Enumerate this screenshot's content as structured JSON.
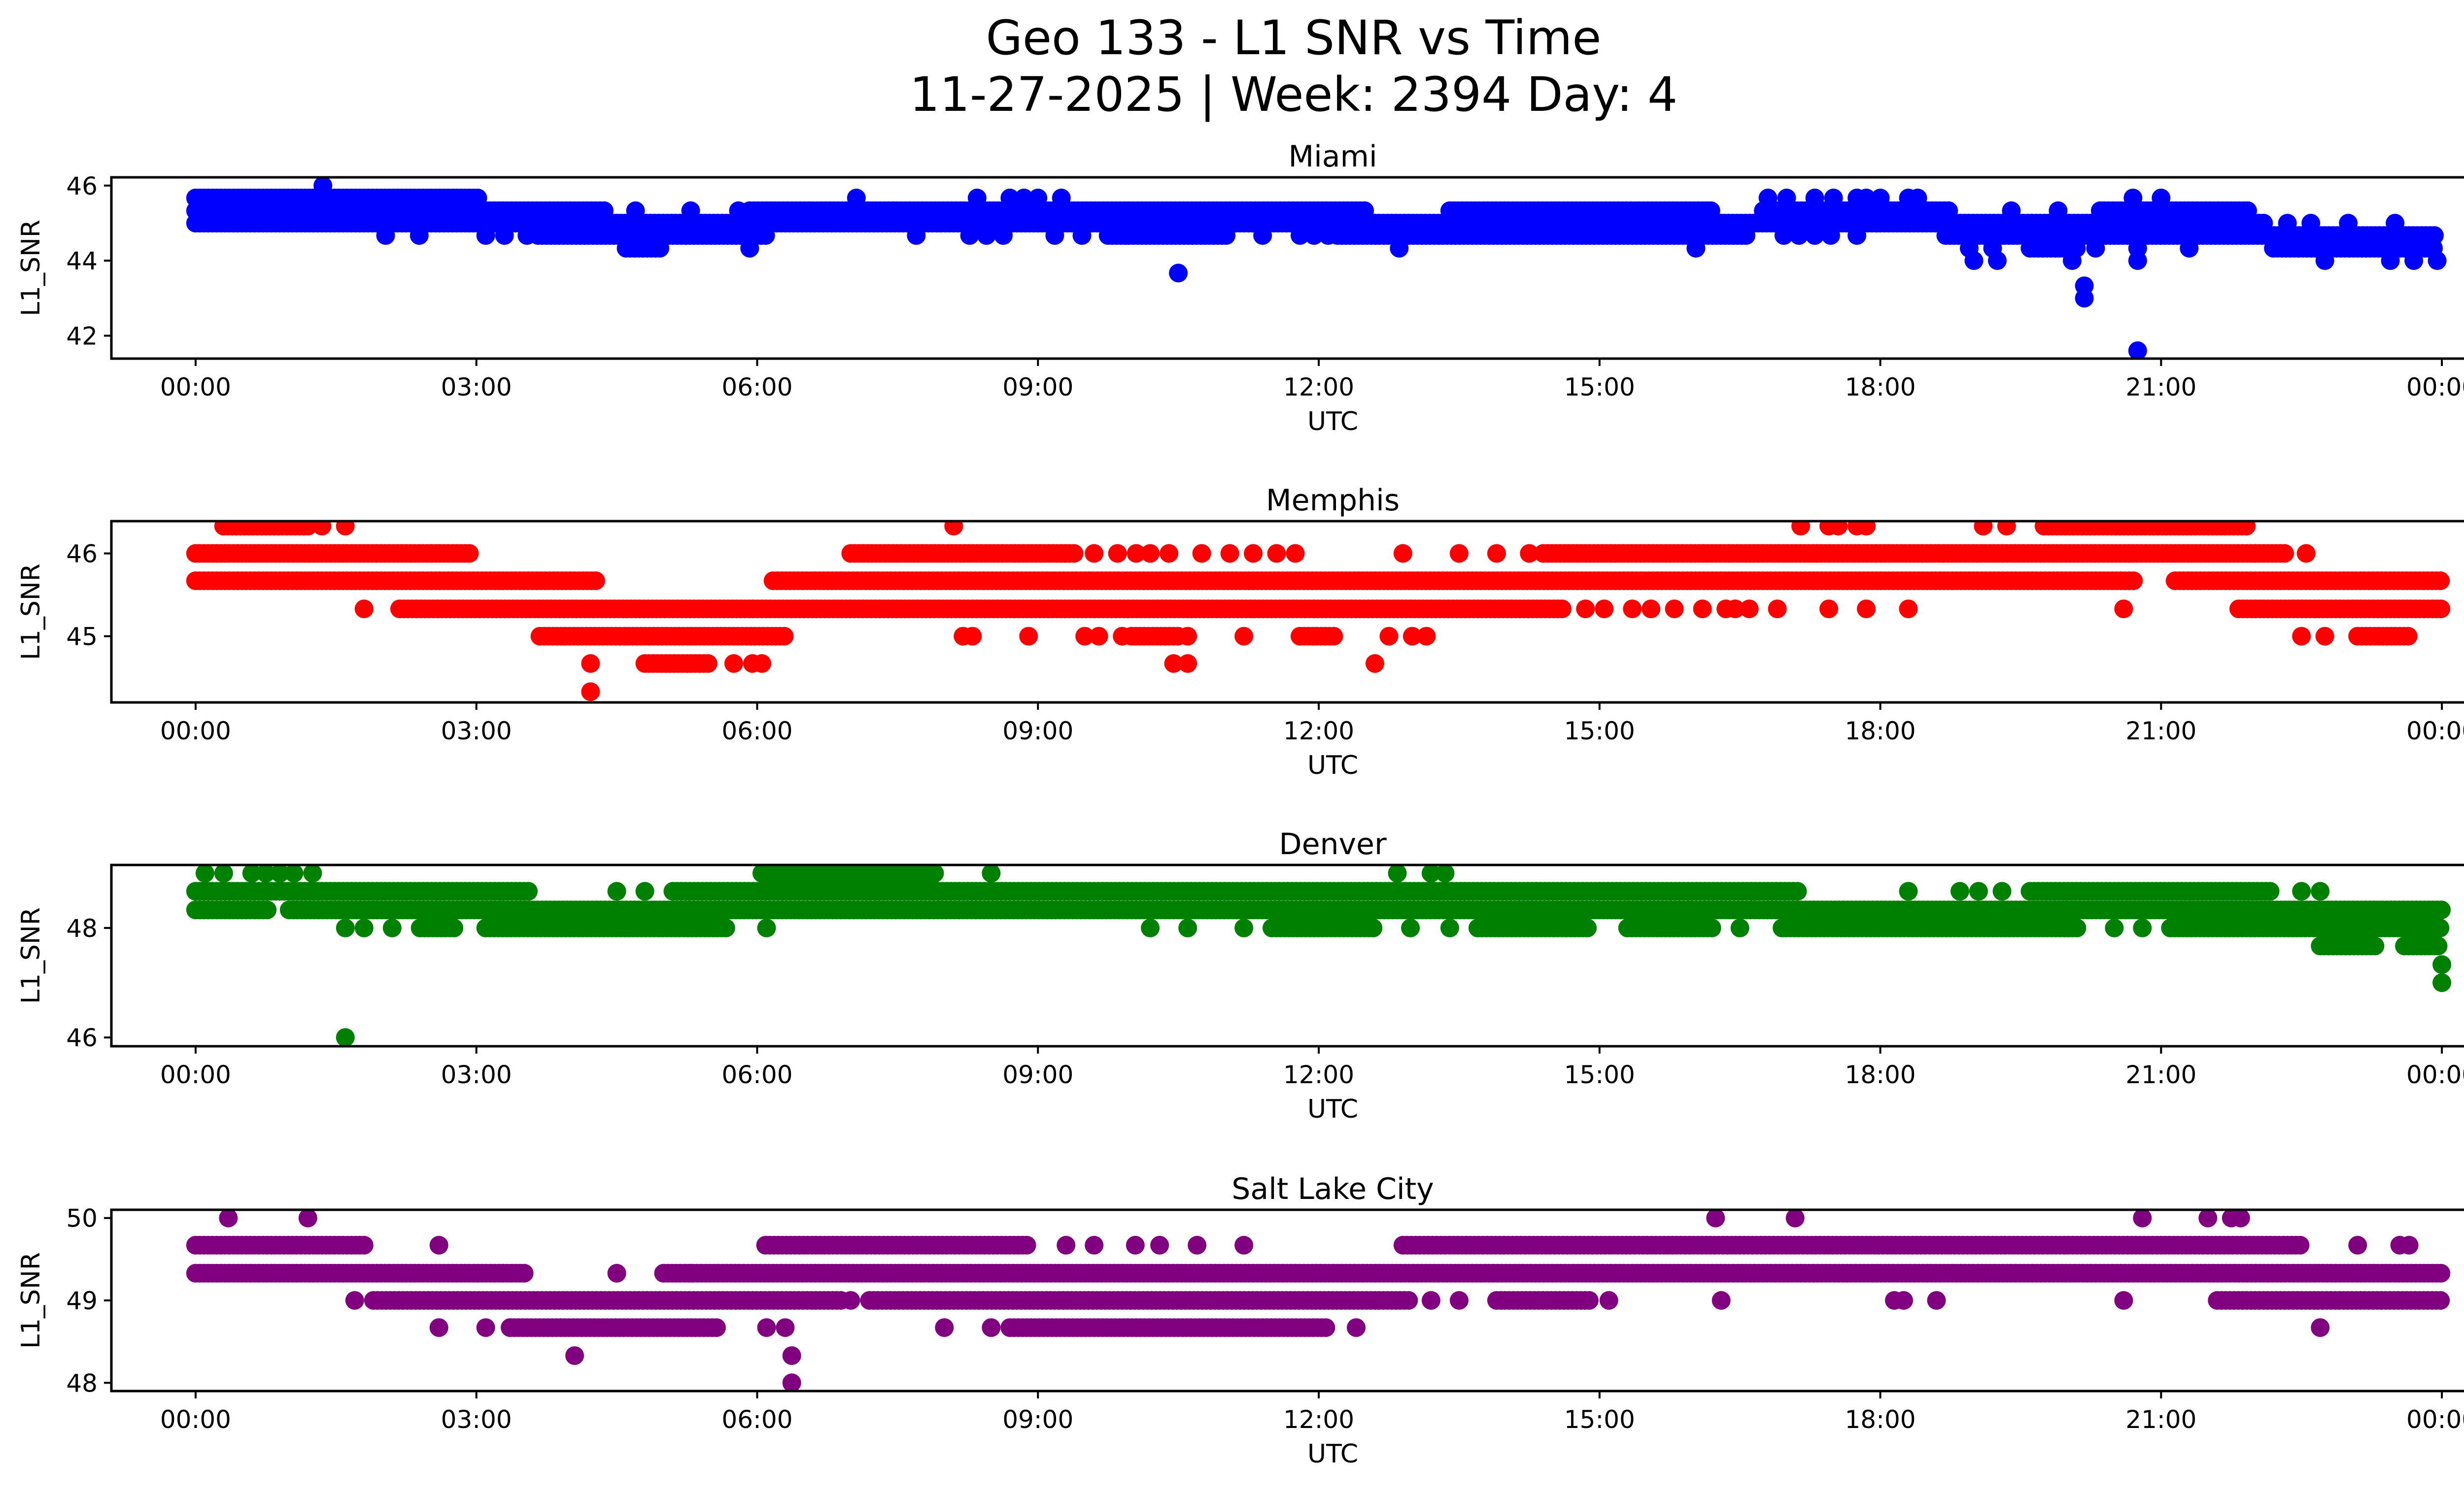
{
  "chart_data": {
    "type": "scatter",
    "suptitle_line1": "Geo 133 - L1 SNR vs Time",
    "suptitle_line2": "11-27-2025 | Week: 2394 Day: 4",
    "xlabel": "UTC",
    "ylabel": "L1_SNR",
    "x_unit": "hours UTC",
    "xlim": [
      -0.9,
      25.2
    ],
    "xticks": [
      0,
      3,
      6,
      9,
      12,
      15,
      18,
      21,
      24
    ],
    "xtick_labels": [
      "00:00",
      "03:00",
      "06:00",
      "09:00",
      "12:00",
      "15:00",
      "18:00",
      "21:00",
      "00:00"
    ],
    "grid": false,
    "legend": "none",
    "panels": [
      {
        "title": "Miami",
        "color": "#0000ff",
        "ylim": [
          41.39,
          46.22
        ],
        "yticks": [
          42,
          44,
          46
        ],
        "ytick_labels": [
          "42",
          "44",
          "46"
        ],
        "bands": [
          {
            "y": 46.0,
            "ranges": [],
            "points": [
              1.36
            ]
          },
          {
            "y": 45.67,
            "ranges": [
              [
                0,
                3.05
              ]
            ],
            "points": [
              7.06,
              8.35,
              8.7,
              8.85,
              9.0,
              9.25,
              16.8,
              17.0,
              17.3,
              17.5,
              17.75,
              17.85,
              18.0,
              18.3,
              18.4,
              20.7,
              21.0
            ]
          },
          {
            "y": 45.33,
            "ranges": [
              [
                0,
                4.38
              ],
              [
                5.92,
                12.52
              ],
              [
                13.4,
                16.2
              ],
              [
                16.75,
                18.75
              ],
              [
                20.35,
                21.95
              ]
            ],
            "points": [
              4.7,
              5.29,
              5.8,
              19.4,
              19.9
            ]
          },
          {
            "y": 45.0,
            "ranges": [
              [
                0,
                22.1
              ]
            ],
            "points": [
              22.35,
              22.6,
              23.0,
              23.5
            ]
          },
          {
            "y": 44.67,
            "ranges": [
              [
                3.66,
                6.13
              ],
              [
                9.75,
                11.05
              ],
              [
                12.2,
                16.6
              ],
              [
                18.7,
                23.95
              ]
            ],
            "points": [
              2.03,
              2.39,
              3.1,
              3.3,
              3.54,
              7.7,
              8.27,
              8.45,
              8.63,
              9.18,
              9.47,
              11.4,
              11.8,
              11.95,
              12.1,
              16.97,
              17.13,
              17.3,
              17.47,
              17.75
            ]
          },
          {
            "y": 44.33,
            "ranges": [
              [
                4.6,
                5.0
              ],
              [
                19.6,
                20.1
              ],
              [
                22.2,
                23.95
              ]
            ],
            "points": [
              5.92,
              12.86,
              16.03,
              18.95,
              19.2,
              20.3,
              20.75,
              21.3
            ]
          },
          {
            "y": 44.0,
            "ranges": [],
            "points": [
              19.0,
              19.25,
              20.05,
              20.75,
              22.75,
              23.45,
              23.7,
              23.95
            ]
          },
          {
            "y": 43.67,
            "ranges": [],
            "points": [
              10.5
            ]
          },
          {
            "y": 43.33,
            "ranges": [],
            "points": [
              20.18
            ]
          },
          {
            "y": 43.0,
            "ranges": [],
            "points": [
              20.18
            ]
          },
          {
            "y": 41.6,
            "ranges": [],
            "points": [
              20.75
            ]
          }
        ]
      },
      {
        "title": "Memphis",
        "color": "#ff0000",
        "ylim": [
          44.2,
          46.39
        ],
        "yticks": [
          45,
          46
        ],
        "ytick_labels": [
          "45",
          "46"
        ],
        "bands": [
          {
            "y": 46.33,
            "ranges": [
              [
                0.3,
                1.2
              ],
              [
                19.75,
                21.95
              ]
            ],
            "points": [
              1.35,
              1.6,
              8.1,
              17.15,
              17.45,
              17.55,
              17.75,
              17.85,
              19.1,
              19.35
            ]
          },
          {
            "y": 46.0,
            "ranges": [
              [
                0,
                2.95
              ],
              [
                7.0,
                9.4
              ],
              [
                14.4,
                22.35
              ]
            ],
            "points": [
              9.6,
              9.85,
              10.05,
              10.2,
              10.4,
              10.75,
              11.05,
              11.3,
              11.55,
              11.75,
              12.9,
              13.5,
              13.9,
              14.25,
              22.55
            ]
          },
          {
            "y": 45.67,
            "ranges": [
              [
                0,
                4.3
              ],
              [
                6.17,
                20.73
              ],
              [
                21.15,
                24.0
              ]
            ],
            "points": []
          },
          {
            "y": 45.33,
            "ranges": [
              [
                2.18,
                14.6
              ],
              [
                21.83,
                24.0
              ]
            ],
            "points": [
              1.8,
              14.85,
              15.05,
              15.35,
              15.55,
              15.8,
              16.1,
              16.35,
              16.45,
              16.6,
              16.9,
              17.45,
              17.85,
              18.3,
              20.6
            ]
          },
          {
            "y": 45.0,
            "ranges": [
              [
                3.68,
                6.33
              ],
              [
                10.0,
                10.5
              ],
              [
                11.8,
                12.2
              ],
              [
                23.1,
                23.65
              ]
            ],
            "points": [
              8.2,
              8.3,
              8.9,
              9.5,
              9.65,
              9.9,
              10.6,
              11.2,
              12.75,
              13.0,
              13.15,
              22.5,
              22.75
            ]
          },
          {
            "y": 44.67,
            "ranges": [
              [
                4.8,
                5.5
              ]
            ],
            "points": [
              4.22,
              5.75,
              5.95,
              6.05,
              10.45,
              10.6,
              12.6
            ]
          },
          {
            "y": 44.33,
            "ranges": [],
            "points": [
              4.22
            ]
          }
        ]
      },
      {
        "title": "Denver",
        "color": "#008000",
        "ylim": [
          45.84,
          49.15
        ],
        "yticks": [
          46,
          48
        ],
        "ytick_labels": [
          "46",
          "48"
        ],
        "bands": [
          {
            "y": 49.0,
            "ranges": [
              [
                6.05,
                7.9
              ]
            ],
            "points": [
              0.1,
              0.3,
              0.6,
              0.75,
              0.9,
              1.05,
              1.25,
              8.5,
              12.84,
              13.2,
              13.35
            ]
          },
          {
            "y": 48.67,
            "ranges": [
              [
                0,
                3.56
              ],
              [
                5.1,
                17.15
              ],
              [
                19.6,
                22.2
              ]
            ],
            "points": [
              4.5,
              4.8,
              18.3,
              18.85,
              19.05,
              19.3,
              22.5,
              22.7
            ]
          },
          {
            "y": 48.33,
            "ranges": [
              [
                0,
                0.8
              ],
              [
                1.0,
                24.0
              ]
            ],
            "points": []
          },
          {
            "y": 48.0,
            "ranges": [
              [
                2.4,
                2.8
              ],
              [
                3.1,
                5.7
              ],
              [
                11.5,
                12.6
              ],
              [
                13.7,
                14.9
              ],
              [
                15.3,
                16.2
              ],
              [
                16.95,
                20.1
              ],
              [
                21.1,
                24.0
              ]
            ],
            "points": [
              1.6,
              1.8,
              2.1,
              6.1,
              10.2,
              10.6,
              11.2,
              12.98,
              13.4,
              16.5,
              20.5,
              20.8
            ]
          },
          {
            "y": 47.67,
            "ranges": [
              [
                22.7,
                23.3
              ],
              [
                23.6,
                24.0
              ]
            ],
            "points": []
          },
          {
            "y": 47.33,
            "ranges": [],
            "points": [
              24.0
            ]
          },
          {
            "y": 47.0,
            "ranges": [],
            "points": [
              24.0
            ]
          },
          {
            "y": 46.0,
            "ranges": [],
            "points": [
              1.6
            ]
          }
        ]
      },
      {
        "title": "Salt Lake City",
        "color": "#800080",
        "ylim": [
          47.9,
          50.1
        ],
        "yticks": [
          48,
          49,
          50
        ],
        "ytick_labels": [
          "48",
          "49",
          "50"
        ],
        "bands": [
          {
            "y": 50.0,
            "ranges": [],
            "points": [
              0.35,
              1.2,
              16.24,
              17.09,
              20.8,
              21.5,
              21.75,
              21.85
            ]
          },
          {
            "y": 49.67,
            "ranges": [
              [
                0,
                1.8
              ],
              [
                6.09,
                8.9
              ],
              [
                12.9,
                22.5
              ]
            ],
            "points": [
              2.6,
              9.3,
              9.6,
              10.04,
              10.3,
              10.7,
              11.2,
              23.1,
              23.55,
              23.65
            ]
          },
          {
            "y": 49.33,
            "ranges": [
              [
                0,
                3.52
              ],
              [
                5.0,
                24.0
              ]
            ],
            "points": [
              4.5,
              5.3
            ]
          },
          {
            "y": 49.0,
            "ranges": [
              [
                1.9,
                6.9
              ],
              [
                7.2,
                13.0
              ],
              [
                13.9,
                14.9
              ],
              [
                21.6,
                24.0
              ]
            ],
            "points": [
              1.7,
              7.0,
              13.2,
              13.5,
              15.1,
              16.3,
              18.15,
              18.25,
              18.6,
              20.6
            ]
          },
          {
            "y": 48.67,
            "ranges": [
              [
                3.36,
                5.6
              ],
              [
                8.7,
                12.1
              ]
            ],
            "points": [
              2.6,
              3.1,
              6.1,
              6.3,
              8.0,
              8.5,
              12.4,
              22.7
            ]
          },
          {
            "y": 48.33,
            "ranges": [],
            "points": [
              4.05,
              6.37
            ]
          },
          {
            "y": 48.0,
            "ranges": [],
            "points": [
              6.37
            ]
          }
        ]
      }
    ]
  }
}
